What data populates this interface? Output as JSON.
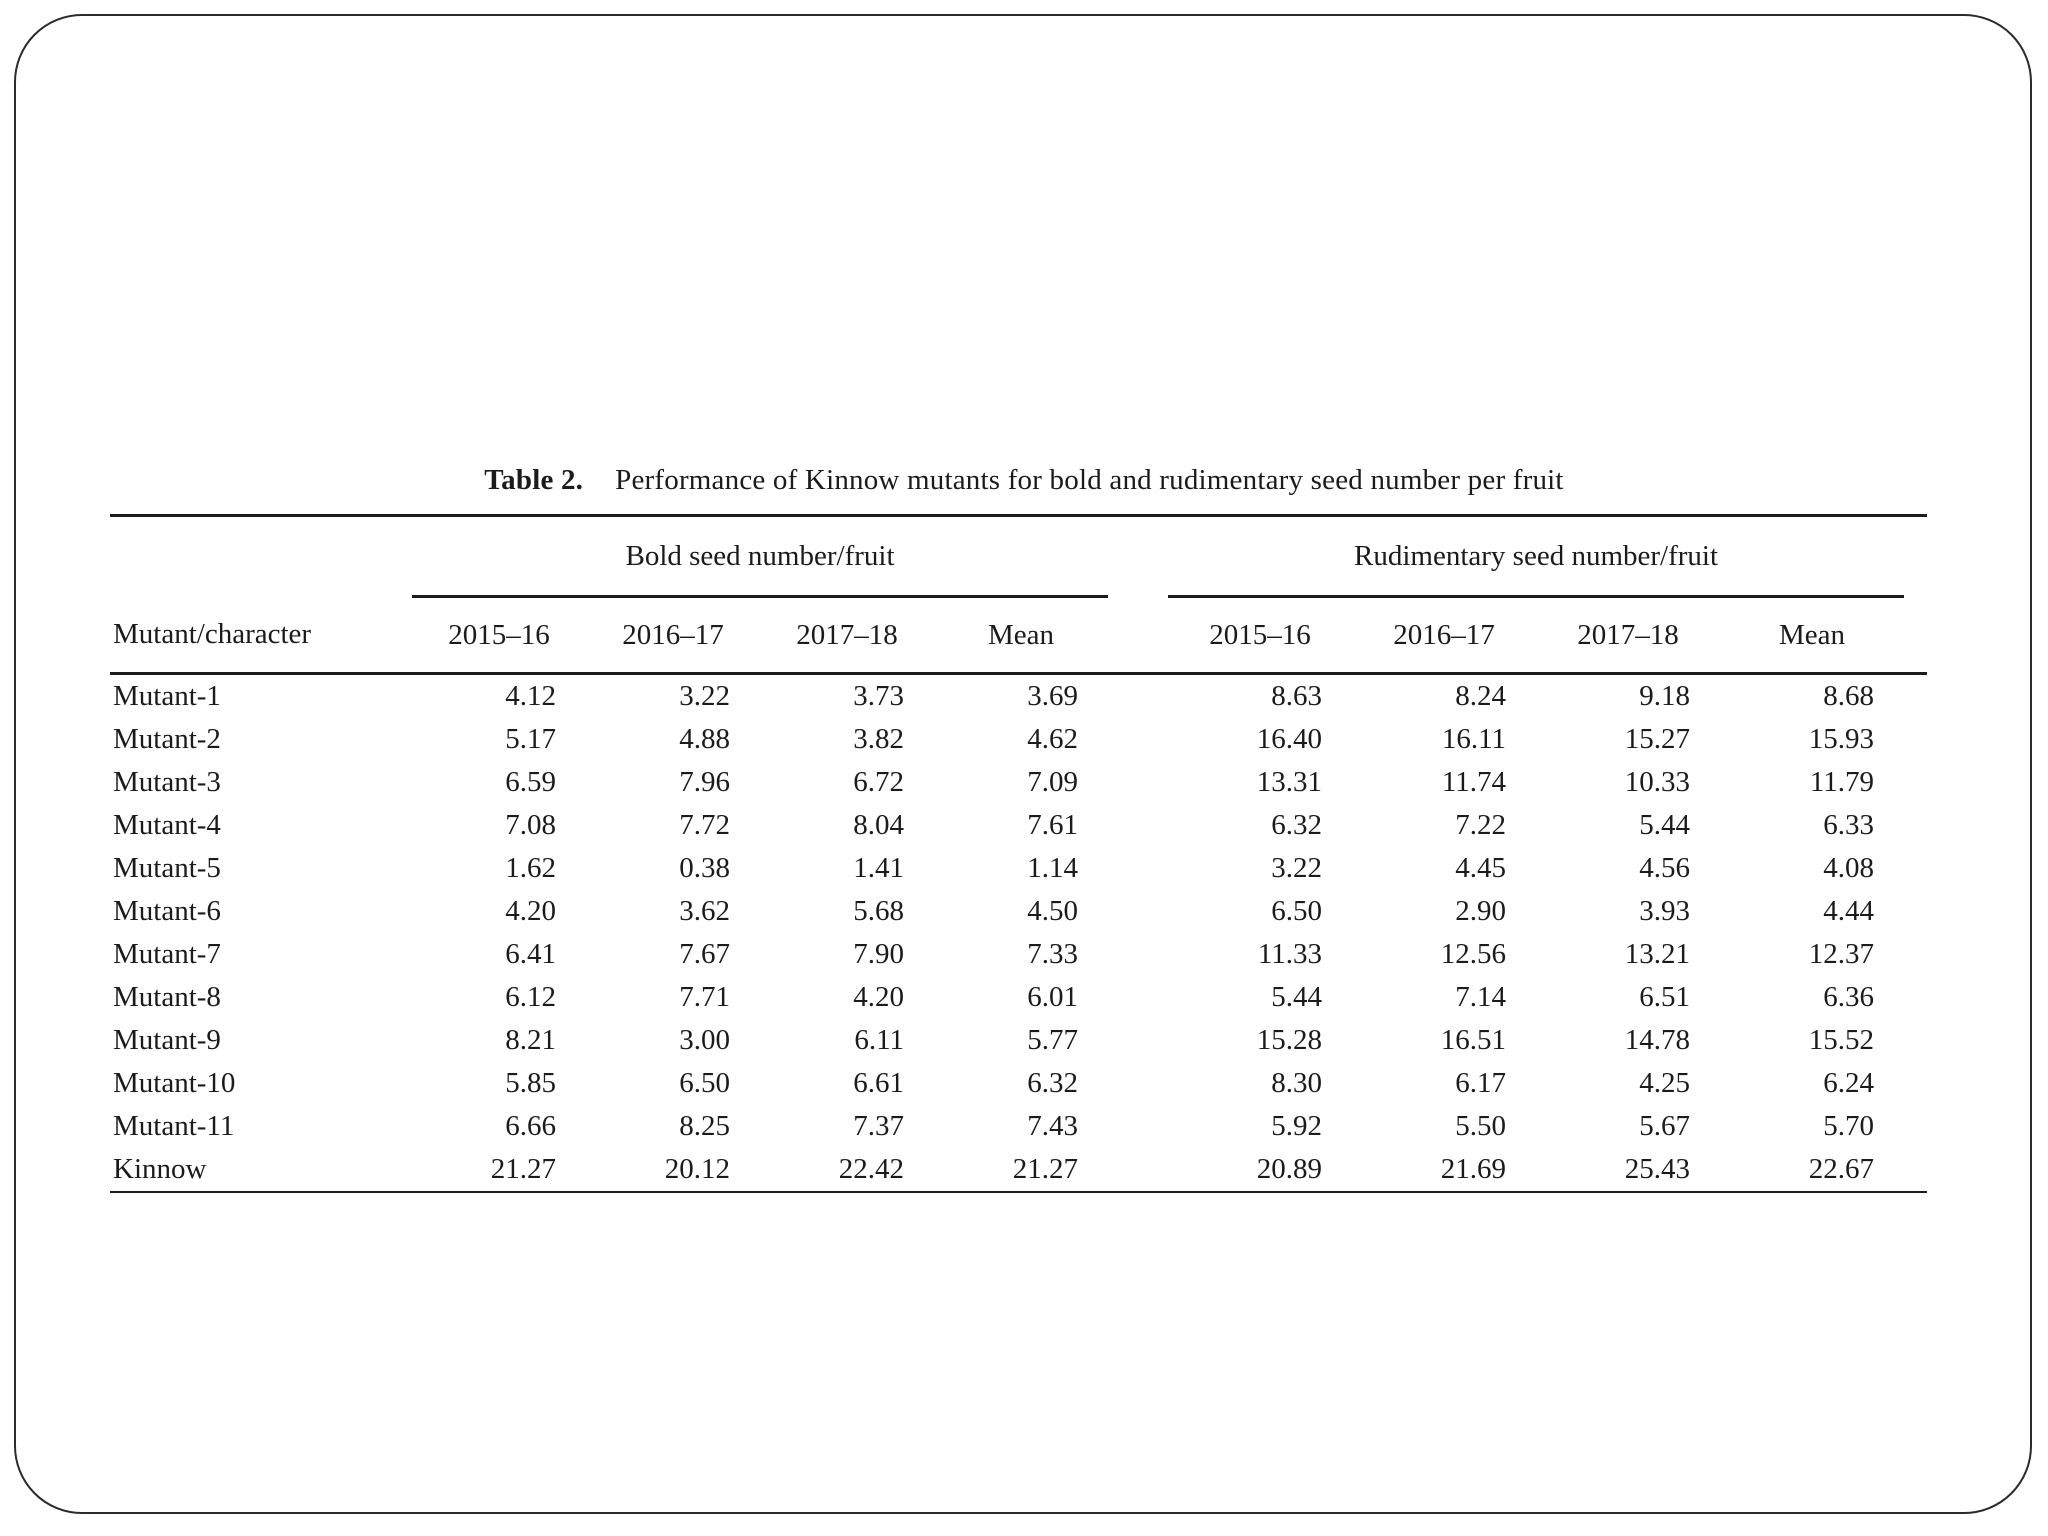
{
  "caption": {
    "label": "Table 2.",
    "text": "Performance of Kinnow mutants for bold and rudimentary seed number per fruit"
  },
  "table": {
    "row_header": "Mutant/character",
    "groups": [
      {
        "label": "Bold seed number/fruit",
        "columns": [
          "2015–16",
          "2016–17",
          "2017–18",
          "Mean"
        ]
      },
      {
        "label": "Rudimentary seed number/fruit",
        "columns": [
          "2015–16",
          "2016–17",
          "2017–18",
          "Mean"
        ]
      }
    ],
    "rows": [
      {
        "name": "Mutant-1",
        "bold": [
          "4.12",
          "3.22",
          "3.73",
          "3.69"
        ],
        "rudimentary": [
          "8.63",
          "8.24",
          "9.18",
          "8.68"
        ]
      },
      {
        "name": "Mutant-2",
        "bold": [
          "5.17",
          "4.88",
          "3.82",
          "4.62"
        ],
        "rudimentary": [
          "16.40",
          "16.11",
          "15.27",
          "15.93"
        ]
      },
      {
        "name": "Mutant-3",
        "bold": [
          "6.59",
          "7.96",
          "6.72",
          "7.09"
        ],
        "rudimentary": [
          "13.31",
          "11.74",
          "10.33",
          "11.79"
        ]
      },
      {
        "name": "Mutant-4",
        "bold": [
          "7.08",
          "7.72",
          "8.04",
          "7.61"
        ],
        "rudimentary": [
          "6.32",
          "7.22",
          "5.44",
          "6.33"
        ]
      },
      {
        "name": "Mutant-5",
        "bold": [
          "1.62",
          "0.38",
          "1.41",
          "1.14"
        ],
        "rudimentary": [
          "3.22",
          "4.45",
          "4.56",
          "4.08"
        ]
      },
      {
        "name": "Mutant-6",
        "bold": [
          "4.20",
          "3.62",
          "5.68",
          "4.50"
        ],
        "rudimentary": [
          "6.50",
          "2.90",
          "3.93",
          "4.44"
        ]
      },
      {
        "name": "Mutant-7",
        "bold": [
          "6.41",
          "7.67",
          "7.90",
          "7.33"
        ],
        "rudimentary": [
          "11.33",
          "12.56",
          "13.21",
          "12.37"
        ]
      },
      {
        "name": "Mutant-8",
        "bold": [
          "6.12",
          "7.71",
          "4.20",
          "6.01"
        ],
        "rudimentary": [
          "5.44",
          "7.14",
          "6.51",
          "6.36"
        ]
      },
      {
        "name": "Mutant-9",
        "bold": [
          "8.21",
          "3.00",
          "6.11",
          "5.77"
        ],
        "rudimentary": [
          "15.28",
          "16.51",
          "14.78",
          "15.52"
        ]
      },
      {
        "name": "Mutant-10",
        "bold": [
          "5.85",
          "6.50",
          "6.61",
          "6.32"
        ],
        "rudimentary": [
          "8.30",
          "6.17",
          "4.25",
          "6.24"
        ]
      },
      {
        "name": "Mutant-11",
        "bold": [
          "6.66",
          "8.25",
          "7.37",
          "7.43"
        ],
        "rudimentary": [
          "5.92",
          "5.50",
          "5.67",
          "5.70"
        ]
      },
      {
        "name": "Kinnow",
        "bold": [
          "21.27",
          "20.12",
          "22.42",
          "21.27"
        ],
        "rudimentary": [
          "20.89",
          "21.69",
          "25.43",
          "22.67"
        ]
      }
    ]
  }
}
